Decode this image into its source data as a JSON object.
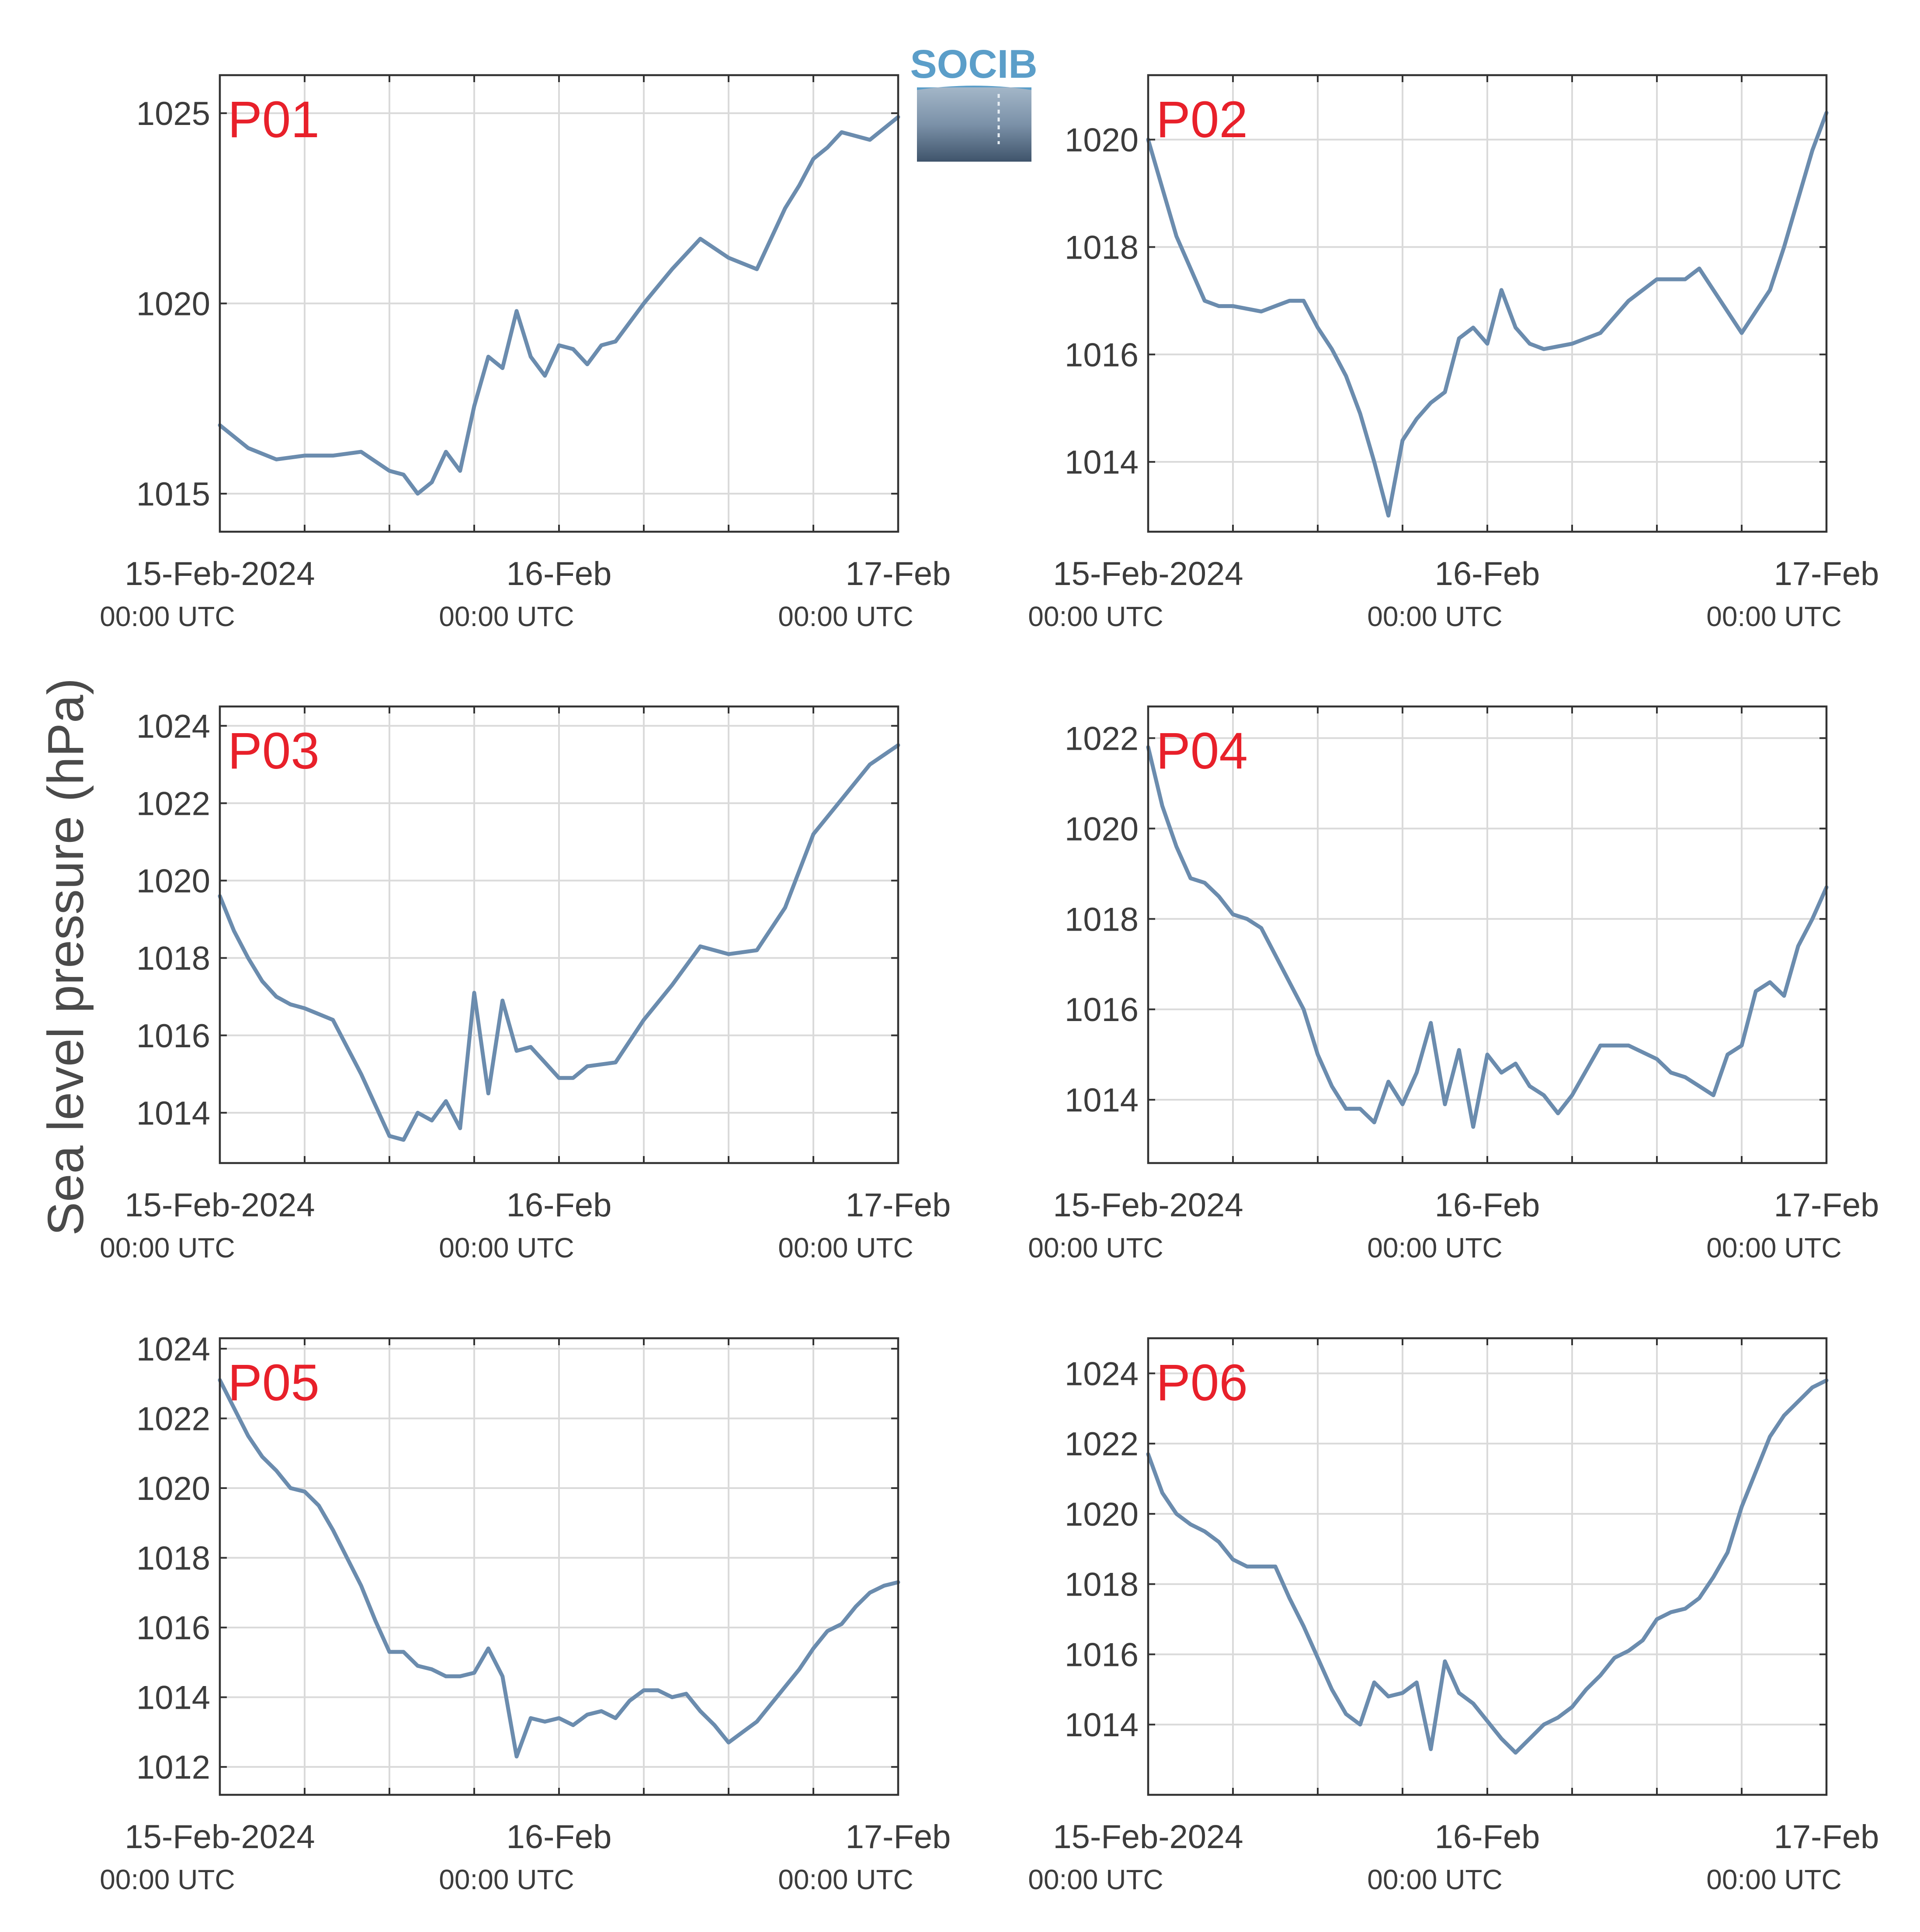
{
  "figure": {
    "ylabel": "Sea level pressure (hPa)",
    "logo_text": "SOCIB",
    "colors": {
      "line": "#6b8cae",
      "panel_label": "#e8202a",
      "grid": "#dadada",
      "axes": "#333333",
      "logo_text": "#5b9ec9"
    }
  },
  "chart_data": [
    {
      "type": "line",
      "panel_label": "P01",
      "x_range": [
        "2024-02-15T00:00",
        "2024-02-17T00:00"
      ],
      "x_tick_labels": [
        {
          "date": "15-Feb-2024",
          "time": "00:00 UTC"
        },
        {
          "date": "16-Feb",
          "time": "00:00 UTC"
        },
        {
          "date": "17-Feb",
          "time": "00:00 UTC"
        }
      ],
      "ylim": [
        1014,
        1026
      ],
      "yticks": [
        1015,
        1020,
        1025
      ],
      "grid": true,
      "x": [
        "2024-02-15T00:00",
        "2024-02-15T02:00",
        "2024-02-15T04:00",
        "2024-02-15T06:00",
        "2024-02-15T08:00",
        "2024-02-15T10:00",
        "2024-02-15T12:00",
        "2024-02-15T13:00",
        "2024-02-15T14:00",
        "2024-02-15T15:00",
        "2024-02-15T16:00",
        "2024-02-15T17:00",
        "2024-02-15T18:00",
        "2024-02-15T19:00",
        "2024-02-15T20:00",
        "2024-02-15T21:00",
        "2024-02-15T22:00",
        "2024-02-15T23:00",
        "2024-02-16T00:00",
        "2024-02-16T01:00",
        "2024-02-16T02:00",
        "2024-02-16T03:00",
        "2024-02-16T04:00",
        "2024-02-16T06:00",
        "2024-02-16T08:00",
        "2024-02-16T10:00",
        "2024-02-16T12:00",
        "2024-02-16T14:00",
        "2024-02-16T16:00",
        "2024-02-16T17:00",
        "2024-02-16T18:00",
        "2024-02-16T19:00",
        "2024-02-16T20:00",
        "2024-02-16T22:00",
        "2024-02-17T00:00"
      ],
      "y": [
        1016.8,
        1016.2,
        1015.9,
        1016.0,
        1016.0,
        1016.1,
        1015.6,
        1015.5,
        1015.0,
        1015.3,
        1016.1,
        1015.6,
        1017.3,
        1018.6,
        1018.3,
        1019.8,
        1018.6,
        1018.1,
        1018.9,
        1018.8,
        1018.4,
        1018.9,
        1019.0,
        1020.0,
        1020.9,
        1021.7,
        1021.2,
        1020.9,
        1022.5,
        1023.1,
        1023.8,
        1024.1,
        1024.5,
        1024.3,
        1024.9
      ]
    },
    {
      "type": "line",
      "panel_label": "P02",
      "x_range": [
        "2024-02-15T00:00",
        "2024-02-17T00:00"
      ],
      "x_tick_labels": [
        {
          "date": "15-Feb-2024",
          "time": "00:00 UTC"
        },
        {
          "date": "16-Feb",
          "time": "00:00 UTC"
        },
        {
          "date": "17-Feb",
          "time": "00:00 UTC"
        }
      ],
      "ylim": [
        1012.7,
        1021.2
      ],
      "yticks": [
        1014,
        1016,
        1018,
        1020
      ],
      "grid": true,
      "x": [
        "2024-02-15T00:00",
        "2024-02-15T01:00",
        "2024-02-15T02:00",
        "2024-02-15T03:00",
        "2024-02-15T04:00",
        "2024-02-15T05:00",
        "2024-02-15T06:00",
        "2024-02-15T08:00",
        "2024-02-15T09:00",
        "2024-02-15T10:00",
        "2024-02-15T11:00",
        "2024-02-15T12:00",
        "2024-02-15T13:00",
        "2024-02-15T14:00",
        "2024-02-15T15:00",
        "2024-02-15T16:00",
        "2024-02-15T17:00",
        "2024-02-15T18:00",
        "2024-02-15T19:00",
        "2024-02-15T20:00",
        "2024-02-15T21:00",
        "2024-02-15T22:00",
        "2024-02-15T23:00",
        "2024-02-16T00:00",
        "2024-02-16T01:00",
        "2024-02-16T02:00",
        "2024-02-16T03:00",
        "2024-02-16T04:00",
        "2024-02-16T06:00",
        "2024-02-16T08:00",
        "2024-02-16T10:00",
        "2024-02-16T12:00",
        "2024-02-16T14:00",
        "2024-02-16T15:00",
        "2024-02-16T16:00",
        "2024-02-16T18:00",
        "2024-02-16T19:00",
        "2024-02-16T20:00",
        "2024-02-16T21:00",
        "2024-02-16T22:00",
        "2024-02-16T23:00",
        "2024-02-17T00:00"
      ],
      "y": [
        1020.0,
        1019.1,
        1018.2,
        1017.6,
        1017.0,
        1016.9,
        1016.9,
        1016.8,
        1016.9,
        1017.0,
        1017.0,
        1016.5,
        1016.1,
        1015.6,
        1014.9,
        1014.0,
        1013.0,
        1014.4,
        1014.8,
        1015.1,
        1015.3,
        1016.3,
        1016.5,
        1016.2,
        1017.2,
        1016.5,
        1016.2,
        1016.1,
        1016.2,
        1016.4,
        1017.0,
        1017.4,
        1017.4,
        1017.6,
        1017.2,
        1016.4,
        1016.8,
        1017.2,
        1018.0,
        1018.9,
        1019.8,
        1020.5
      ]
    },
    {
      "type": "line",
      "panel_label": "P03",
      "x_range": [
        "2024-02-15T00:00",
        "2024-02-17T00:00"
      ],
      "x_tick_labels": [
        {
          "date": "15-Feb-2024",
          "time": "00:00 UTC"
        },
        {
          "date": "16-Feb",
          "time": "00:00 UTC"
        },
        {
          "date": "17-Feb",
          "time": "00:00 UTC"
        }
      ],
      "ylim": [
        1012.7,
        1024.5
      ],
      "yticks": [
        1014,
        1016,
        1018,
        1020,
        1022,
        1024
      ],
      "grid": true,
      "x": [
        "2024-02-15T00:00",
        "2024-02-15T01:00",
        "2024-02-15T02:00",
        "2024-02-15T03:00",
        "2024-02-15T04:00",
        "2024-02-15T05:00",
        "2024-02-15T06:00",
        "2024-02-15T08:00",
        "2024-02-15T09:00",
        "2024-02-15T10:00",
        "2024-02-15T11:00",
        "2024-02-15T12:00",
        "2024-02-15T13:00",
        "2024-02-15T14:00",
        "2024-02-15T15:00",
        "2024-02-15T16:00",
        "2024-02-15T17:00",
        "2024-02-15T18:00",
        "2024-02-15T19:00",
        "2024-02-15T20:00",
        "2024-02-15T21:00",
        "2024-02-15T22:00",
        "2024-02-15T23:00",
        "2024-02-16T00:00",
        "2024-02-16T01:00",
        "2024-02-16T02:00",
        "2024-02-16T04:00",
        "2024-02-16T06:00",
        "2024-02-16T08:00",
        "2024-02-16T10:00",
        "2024-02-16T12:00",
        "2024-02-16T14:00",
        "2024-02-16T16:00",
        "2024-02-16T18:00",
        "2024-02-16T20:00",
        "2024-02-16T22:00",
        "2024-02-17T00:00"
      ],
      "y": [
        1019.6,
        1018.7,
        1018.0,
        1017.4,
        1017.0,
        1016.8,
        1016.7,
        1016.4,
        1015.7,
        1015.0,
        1014.2,
        1013.4,
        1013.3,
        1014.0,
        1013.8,
        1014.3,
        1013.6,
        1017.1,
        1014.5,
        1016.9,
        1015.6,
        1015.7,
        1015.3,
        1014.9,
        1014.9,
        1015.2,
        1015.3,
        1016.4,
        1017.3,
        1018.3,
        1018.1,
        1018.2,
        1019.3,
        1021.2,
        1022.1,
        1023.0,
        1023.5
      ]
    },
    {
      "type": "line",
      "panel_label": "P04",
      "x_range": [
        "2024-02-15T00:00",
        "2024-02-17T00:00"
      ],
      "x_tick_labels": [
        {
          "date": "15-Feb-2024",
          "time": "00:00 UTC"
        },
        {
          "date": "16-Feb",
          "time": "00:00 UTC"
        },
        {
          "date": "17-Feb",
          "time": "00:00 UTC"
        }
      ],
      "ylim": [
        1012.6,
        1022.7
      ],
      "yticks": [
        1014,
        1016,
        1018,
        1020,
        1022
      ],
      "grid": true,
      "x": [
        "2024-02-15T00:00",
        "2024-02-15T01:00",
        "2024-02-15T02:00",
        "2024-02-15T03:00",
        "2024-02-15T04:00",
        "2024-02-15T05:00",
        "2024-02-15T06:00",
        "2024-02-15T07:00",
        "2024-02-15T08:00",
        "2024-02-15T09:00",
        "2024-02-15T10:00",
        "2024-02-15T11:00",
        "2024-02-15T12:00",
        "2024-02-15T13:00",
        "2024-02-15T14:00",
        "2024-02-15T15:00",
        "2024-02-15T16:00",
        "2024-02-15T17:00",
        "2024-02-15T18:00",
        "2024-02-15T19:00",
        "2024-02-15T20:00",
        "2024-02-15T21:00",
        "2024-02-15T22:00",
        "2024-02-15T23:00",
        "2024-02-16T00:00",
        "2024-02-16T01:00",
        "2024-02-16T02:00",
        "2024-02-16T03:00",
        "2024-02-16T04:00",
        "2024-02-16T05:00",
        "2024-02-16T06:00",
        "2024-02-16T08:00",
        "2024-02-16T10:00",
        "2024-02-16T12:00",
        "2024-02-16T13:00",
        "2024-02-16T14:00",
        "2024-02-16T15:00",
        "2024-02-16T16:00",
        "2024-02-16T17:00",
        "2024-02-16T18:00",
        "2024-02-16T19:00",
        "2024-02-16T20:00",
        "2024-02-16T21:00",
        "2024-02-16T22:00",
        "2024-02-16T23:00",
        "2024-02-17T00:00"
      ],
      "y": [
        1021.8,
        1020.5,
        1019.6,
        1018.9,
        1018.8,
        1018.5,
        1018.1,
        1018.0,
        1017.8,
        1017.2,
        1016.6,
        1016.0,
        1015.0,
        1014.3,
        1013.8,
        1013.8,
        1013.5,
        1014.4,
        1013.9,
        1014.6,
        1015.7,
        1013.9,
        1015.1,
        1013.4,
        1015.0,
        1014.6,
        1014.8,
        1014.3,
        1014.1,
        1013.7,
        1014.1,
        1015.2,
        1015.2,
        1014.9,
        1014.6,
        1014.5,
        1014.3,
        1014.1,
        1015.0,
        1015.2,
        1016.4,
        1016.6,
        1016.3,
        1017.4,
        1018.0,
        1018.7
      ]
    },
    {
      "type": "line",
      "panel_label": "P05",
      "x_range": [
        "2024-02-15T00:00",
        "2024-02-17T00:00"
      ],
      "x_tick_labels": [
        {
          "date": "15-Feb-2024",
          "time": "00:00 UTC"
        },
        {
          "date": "16-Feb",
          "time": "00:00 UTC"
        },
        {
          "date": "17-Feb",
          "time": "00:00 UTC"
        }
      ],
      "ylim": [
        1011.2,
        1024.3
      ],
      "yticks": [
        1012,
        1014,
        1016,
        1018,
        1020,
        1022,
        1024
      ],
      "grid": true,
      "x": [
        "2024-02-15T00:00",
        "2024-02-15T01:00",
        "2024-02-15T02:00",
        "2024-02-15T03:00",
        "2024-02-15T04:00",
        "2024-02-15T05:00",
        "2024-02-15T06:00",
        "2024-02-15T07:00",
        "2024-02-15T08:00",
        "2024-02-15T09:00",
        "2024-02-15T10:00",
        "2024-02-15T11:00",
        "2024-02-15T12:00",
        "2024-02-15T13:00",
        "2024-02-15T14:00",
        "2024-02-15T15:00",
        "2024-02-15T16:00",
        "2024-02-15T17:00",
        "2024-02-15T18:00",
        "2024-02-15T19:00",
        "2024-02-15T20:00",
        "2024-02-15T21:00",
        "2024-02-15T22:00",
        "2024-02-15T23:00",
        "2024-02-16T00:00",
        "2024-02-16T01:00",
        "2024-02-16T02:00",
        "2024-02-16T03:00",
        "2024-02-16T04:00",
        "2024-02-16T05:00",
        "2024-02-16T06:00",
        "2024-02-16T07:00",
        "2024-02-16T08:00",
        "2024-02-16T09:00",
        "2024-02-16T10:00",
        "2024-02-16T11:00",
        "2024-02-16T12:00",
        "2024-02-16T13:00",
        "2024-02-16T14:00",
        "2024-02-16T15:00",
        "2024-02-16T16:00",
        "2024-02-16T17:00",
        "2024-02-16T18:00",
        "2024-02-16T19:00",
        "2024-02-16T20:00",
        "2024-02-16T21:00",
        "2024-02-16T22:00",
        "2024-02-16T23:00",
        "2024-02-17T00:00"
      ],
      "y": [
        1023.1,
        1022.3,
        1021.5,
        1020.9,
        1020.5,
        1020.0,
        1019.9,
        1019.5,
        1018.8,
        1018.0,
        1017.2,
        1016.2,
        1015.3,
        1015.3,
        1014.9,
        1014.8,
        1014.6,
        1014.6,
        1014.7,
        1015.4,
        1014.6,
        1012.3,
        1013.4,
        1013.3,
        1013.4,
        1013.2,
        1013.5,
        1013.6,
        1013.4,
        1013.9,
        1014.2,
        1014.2,
        1014.0,
        1014.1,
        1013.6,
        1013.2,
        1012.7,
        1013.0,
        1013.3,
        1013.8,
        1014.3,
        1014.8,
        1015.4,
        1015.9,
        1016.1,
        1016.6,
        1017.0,
        1017.2,
        1017.3
      ]
    },
    {
      "type": "line",
      "panel_label": "P06",
      "x_range": [
        "2024-02-15T00:00",
        "2024-02-17T00:00"
      ],
      "x_tick_labels": [
        {
          "date": "15-Feb-2024",
          "time": "00:00 UTC"
        },
        {
          "date": "16-Feb",
          "time": "00:00 UTC"
        },
        {
          "date": "17-Feb",
          "time": "00:00 UTC"
        }
      ],
      "ylim": [
        1012.0,
        1025.0
      ],
      "yticks": [
        1014,
        1016,
        1018,
        1020,
        1022,
        1024
      ],
      "grid": true,
      "x": [
        "2024-02-15T00:00",
        "2024-02-15T01:00",
        "2024-02-15T02:00",
        "2024-02-15T03:00",
        "2024-02-15T04:00",
        "2024-02-15T05:00",
        "2024-02-15T06:00",
        "2024-02-15T07:00",
        "2024-02-15T08:00",
        "2024-02-15T09:00",
        "2024-02-15T10:00",
        "2024-02-15T11:00",
        "2024-02-15T12:00",
        "2024-02-15T13:00",
        "2024-02-15T14:00",
        "2024-02-15T15:00",
        "2024-02-15T16:00",
        "2024-02-15T17:00",
        "2024-02-15T18:00",
        "2024-02-15T19:00",
        "2024-02-15T20:00",
        "2024-02-15T21:00",
        "2024-02-15T22:00",
        "2024-02-15T23:00",
        "2024-02-16T00:00",
        "2024-02-16T01:00",
        "2024-02-16T02:00",
        "2024-02-16T03:00",
        "2024-02-16T04:00",
        "2024-02-16T05:00",
        "2024-02-16T06:00",
        "2024-02-16T07:00",
        "2024-02-16T08:00",
        "2024-02-16T09:00",
        "2024-02-16T10:00",
        "2024-02-16T11:00",
        "2024-02-16T12:00",
        "2024-02-16T13:00",
        "2024-02-16T14:00",
        "2024-02-16T15:00",
        "2024-02-16T16:00",
        "2024-02-16T17:00",
        "2024-02-16T18:00",
        "2024-02-16T19:00",
        "2024-02-16T20:00",
        "2024-02-16T21:00",
        "2024-02-16T22:00",
        "2024-02-16T23:00",
        "2024-02-17T00:00"
      ],
      "y": [
        1021.7,
        1020.6,
        1020.0,
        1019.7,
        1019.5,
        1019.2,
        1018.7,
        1018.5,
        1018.5,
        1018.5,
        1017.6,
        1016.8,
        1015.9,
        1015.0,
        1014.3,
        1014.0,
        1015.2,
        1014.8,
        1014.9,
        1015.2,
        1013.3,
        1015.8,
        1014.9,
        1014.6,
        1014.1,
        1013.6,
        1013.2,
        1013.6,
        1014.0,
        1014.2,
        1014.5,
        1015.0,
        1015.4,
        1015.9,
        1016.1,
        1016.4,
        1017.0,
        1017.2,
        1017.3,
        1017.6,
        1018.2,
        1018.9,
        1020.2,
        1021.2,
        1022.2,
        1022.8,
        1023.2,
        1023.6,
        1023.8
      ]
    }
  ]
}
